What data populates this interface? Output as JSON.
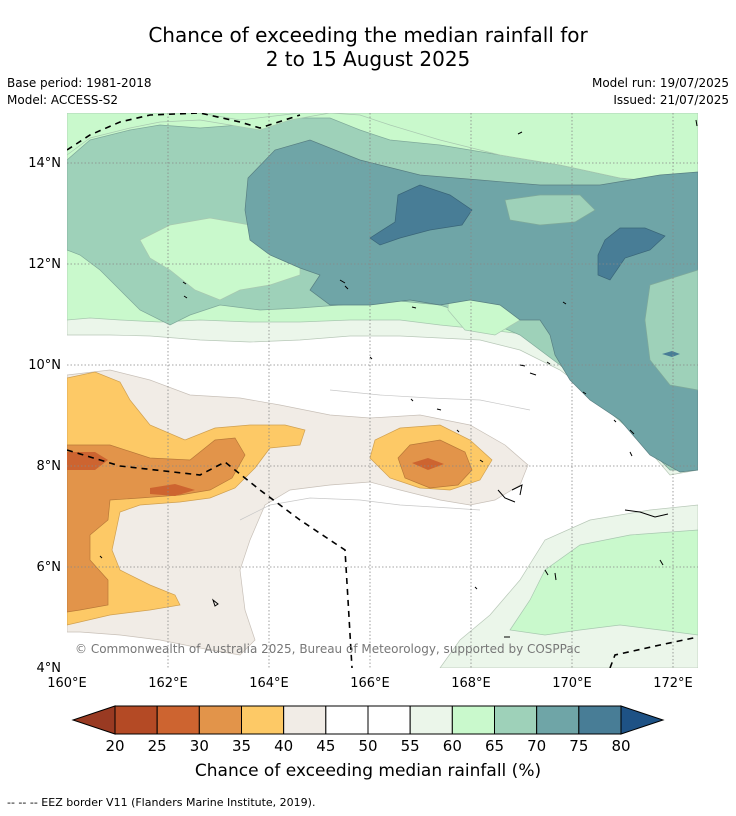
{
  "title": {
    "line1": "Chance of exceeding the median rainfall for",
    "line2": "2 to 15 August 2025"
  },
  "meta": {
    "base_period": "Base period: 1981-2018",
    "model": "Model: ACCESS-S2",
    "model_run": "Model run: 19/07/2025",
    "issued": "Issued: 21/07/2025"
  },
  "map": {
    "lon_range": [
      160,
      172.5
    ],
    "lat_range": [
      4,
      15
    ],
    "x_ticks": [
      "160°E",
      "162°E",
      "164°E",
      "166°E",
      "168°E",
      "170°E",
      "172°E"
    ],
    "y_ticks": [
      "4°N",
      "6°N",
      "8°N",
      "10°N",
      "12°N",
      "14°N"
    ],
    "x_tick_values": [
      160,
      162,
      164,
      166,
      168,
      170,
      172
    ],
    "y_tick_values": [
      4,
      6,
      8,
      10,
      12,
      14
    ],
    "copyright": "© Commonwealth of Australia 2025, Bureau of Meteorology, supported by COSPPac"
  },
  "colorbar": {
    "title": "Chance of exceeding median rainfall (%)",
    "ticks": [
      "20",
      "25",
      "30",
      "35",
      "40",
      "45",
      "50",
      "55",
      "60",
      "65",
      "70",
      "75",
      "80"
    ],
    "colors": [
      "#b44a25",
      "#cd6430",
      "#e2944a",
      "#fdc966",
      "#f1ece6",
      "#ffffff",
      "#ffffff",
      "#ebf6ea",
      "#c9f9cc",
      "#9ed1b9",
      "#6fa5a7",
      "#487d96"
    ],
    "under_color": "#993a22",
    "over_color": "#1e5285"
  },
  "footer": "--  --  -- EEZ border V11 (Flanders Marine Institute, 2019)."
}
